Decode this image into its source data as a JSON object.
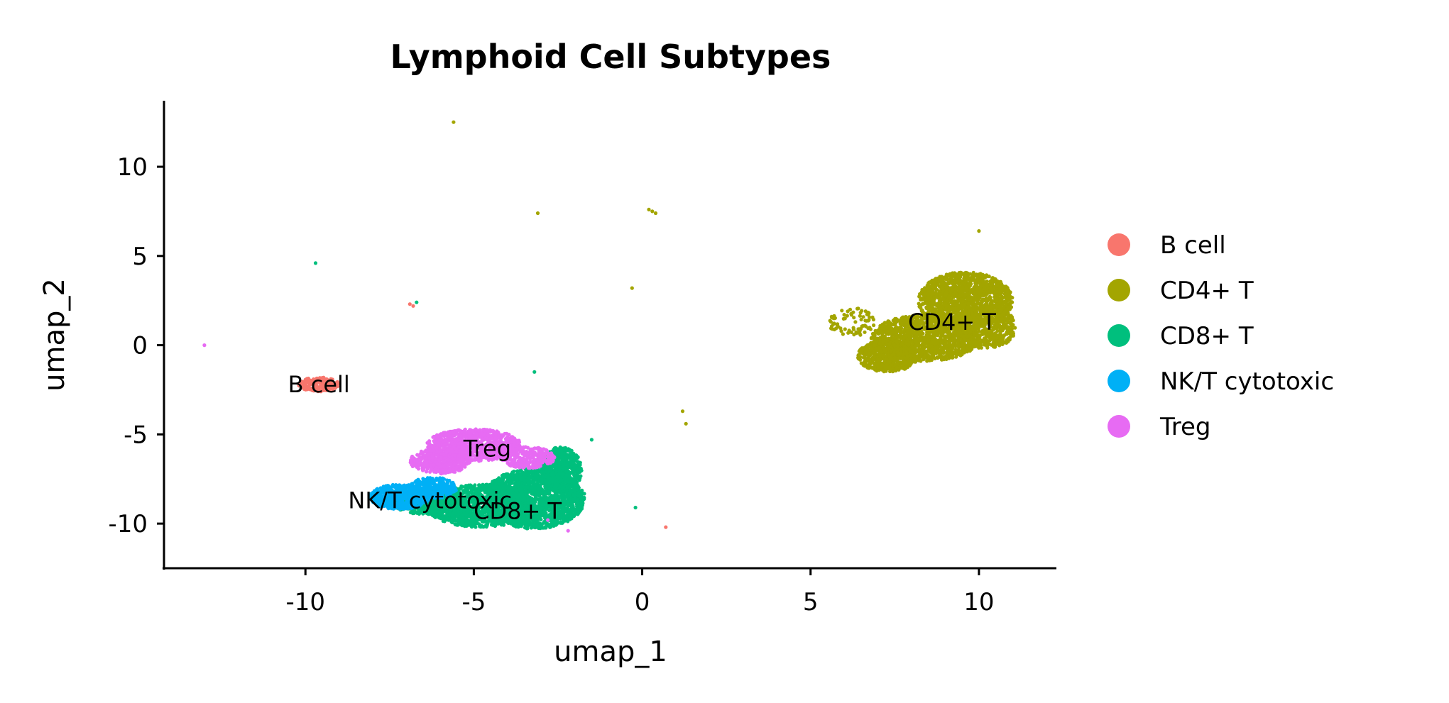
{
  "chart_data": {
    "type": "scatter",
    "title": "Lymphoid Cell Subtypes",
    "xlabel": "umap_1",
    "ylabel": "umap_2",
    "xlim": [
      -14.2,
      12.3
    ],
    "ylim": [
      -12.5,
      13.7
    ],
    "x_ticks": [
      -10,
      -5,
      0,
      5,
      10
    ],
    "y_ticks": [
      -10,
      -5,
      0,
      5,
      10
    ],
    "x_tick_labels": [
      "-10",
      "-5",
      "0",
      "5",
      "10"
    ],
    "y_tick_labels": [
      "-10",
      "-5",
      "0",
      "5",
      "10"
    ],
    "grid": false,
    "legend_position": "right",
    "series": [
      {
        "name": "B cell",
        "color": "#F8766D",
        "clusters": [
          {
            "cx": -9.6,
            "cy": -2.2,
            "rx": 0.6,
            "ry": 0.4,
            "n": 160
          }
        ],
        "outliers": [
          [
            -6.8,
            2.2
          ],
          [
            -6.9,
            2.3
          ],
          [
            0.7,
            -10.2
          ]
        ]
      },
      {
        "name": "CD4+ T",
        "color": "#A3A500",
        "clusters": [
          {
            "cx": 9.6,
            "cy": 2.5,
            "rx": 1.4,
            "ry": 1.6,
            "n": 1500
          },
          {
            "cx": 8.4,
            "cy": 0.4,
            "rx": 1.6,
            "ry": 1.3,
            "n": 1300
          },
          {
            "cx": 7.3,
            "cy": -0.6,
            "rx": 0.9,
            "ry": 0.9,
            "n": 600
          },
          {
            "cx": 10.2,
            "cy": 1.0,
            "rx": 0.9,
            "ry": 1.2,
            "n": 500
          },
          {
            "cx": 6.2,
            "cy": 1.3,
            "rx": 0.7,
            "ry": 0.8,
            "n": 80
          }
        ],
        "outliers": [
          [
            -5.6,
            12.5
          ],
          [
            -3.1,
            7.4
          ],
          [
            0.3,
            7.5
          ],
          [
            0.4,
            7.4
          ],
          [
            0.2,
            7.6
          ],
          [
            -0.3,
            3.2
          ],
          [
            1.2,
            -3.7
          ],
          [
            1.3,
            -4.4
          ],
          [
            10.0,
            6.4
          ]
        ]
      },
      {
        "name": "CD8+ T",
        "color": "#00BF7D",
        "clusters": [
          {
            "cx": -3.2,
            "cy": -8.6,
            "rx": 1.5,
            "ry": 1.7,
            "n": 1800
          },
          {
            "cx": -4.8,
            "cy": -9.0,
            "rx": 1.6,
            "ry": 1.2,
            "n": 1300
          },
          {
            "cx": -2.4,
            "cy": -7.0,
            "rx": 0.6,
            "ry": 1.3,
            "n": 600
          },
          {
            "cx": -6.4,
            "cy": -8.8,
            "rx": 1.0,
            "ry": 0.7,
            "n": 500
          }
        ],
        "outliers": [
          [
            -9.7,
            4.6
          ],
          [
            -6.7,
            2.4
          ],
          [
            -3.2,
            -1.5
          ],
          [
            -0.2,
            -9.1
          ],
          [
            -1.5,
            -5.3
          ]
        ]
      },
      {
        "name": "NK/T cytotoxic",
        "color": "#00B0F6",
        "clusters": [
          {
            "cx": -7.2,
            "cy": -8.5,
            "rx": 0.9,
            "ry": 0.7,
            "n": 700
          },
          {
            "cx": -6.2,
            "cy": -8.0,
            "rx": 0.7,
            "ry": 0.6,
            "n": 300
          }
        ],
        "outliers": []
      },
      {
        "name": "Treg",
        "color": "#E76BF3",
        "clusters": [
          {
            "cx": -5.0,
            "cy": -5.6,
            "rx": 1.4,
            "ry": 0.9,
            "n": 900
          },
          {
            "cx": -6.0,
            "cy": -6.5,
            "rx": 0.9,
            "ry": 0.7,
            "n": 400
          },
          {
            "cx": -3.4,
            "cy": -6.3,
            "rx": 0.8,
            "ry": 0.6,
            "n": 300
          }
        ],
        "outliers": [
          [
            -13.0,
            0.0
          ],
          [
            -2.8,
            -9.8
          ],
          [
            -2.2,
            -10.4
          ]
        ]
      }
    ],
    "cluster_labels": [
      {
        "text": "B cell",
        "x": -9.6,
        "y": -2.2
      },
      {
        "text": "CD4+ T",
        "x": 9.2,
        "y": 1.3
      },
      {
        "text": "CD8+ T",
        "x": -3.7,
        "y": -9.3
      },
      {
        "text": "NK/T cytotoxic",
        "x": -6.3,
        "y": -8.7
      },
      {
        "text": "Treg",
        "x": -4.6,
        "y": -5.8
      }
    ]
  }
}
